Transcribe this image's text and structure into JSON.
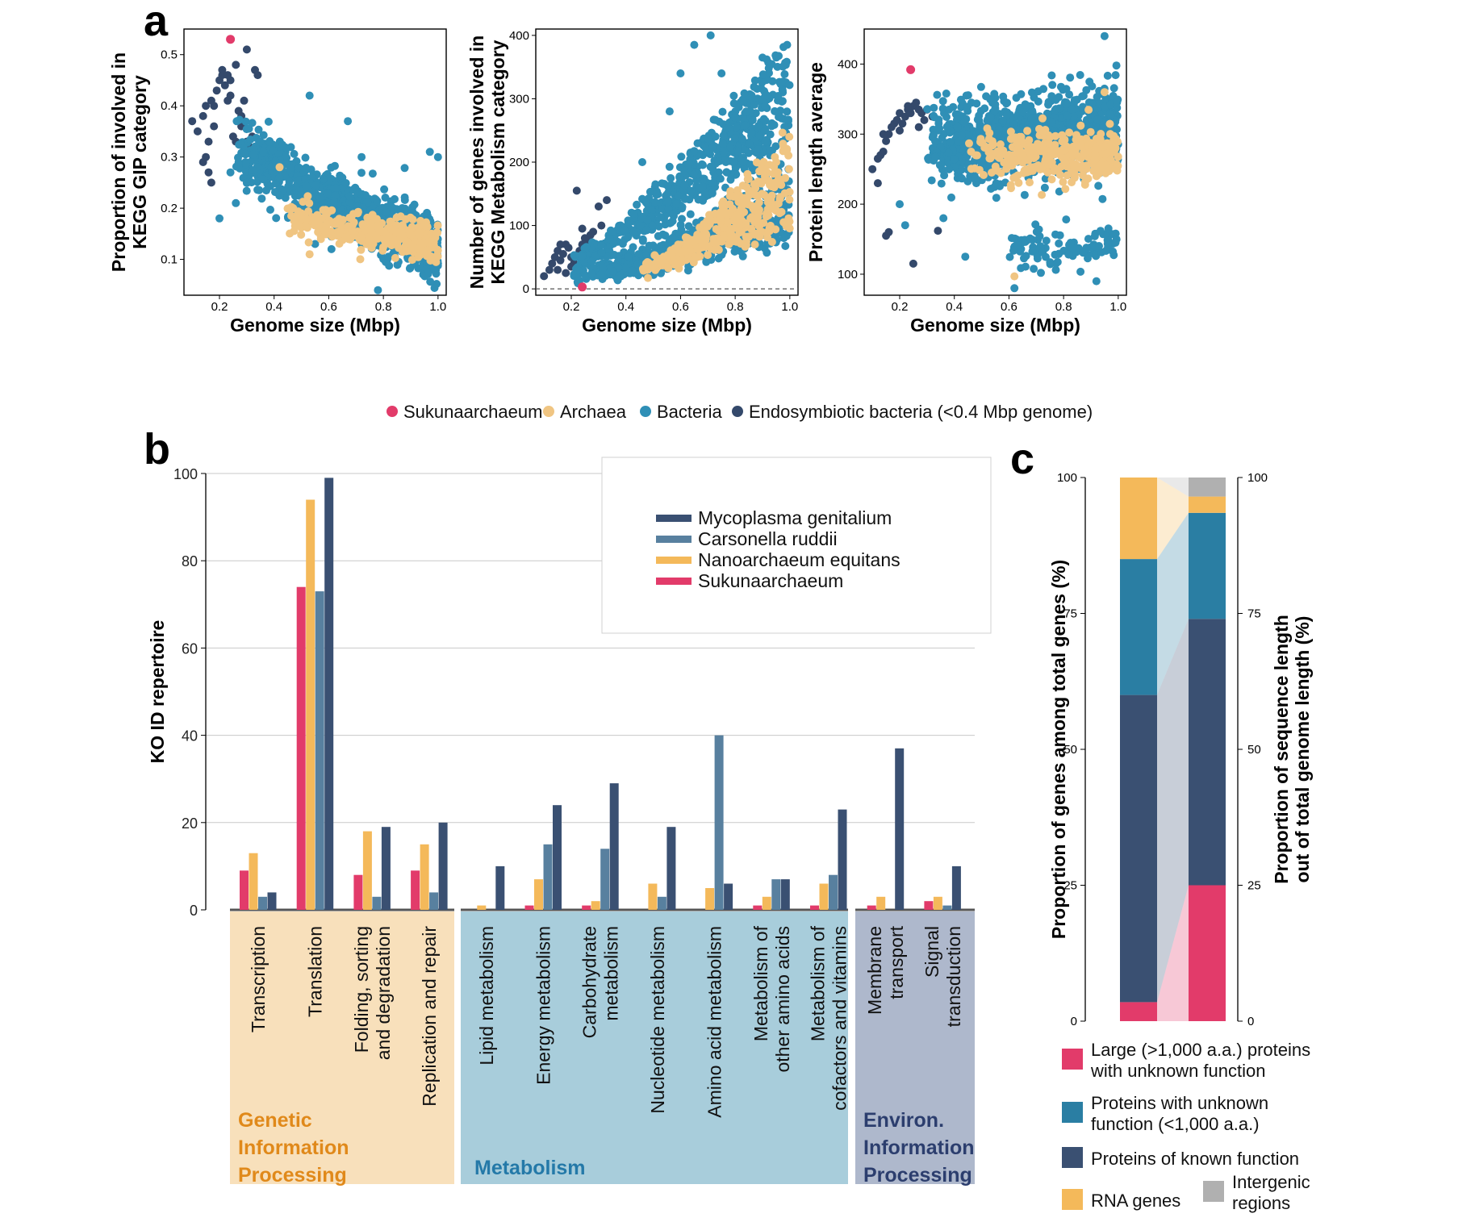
{
  "panel_labels": {
    "a": "a",
    "b": "b",
    "c": "c"
  },
  "colors": {
    "sukuna": "#e23b6a",
    "archaea": "#f0c582",
    "bacteria": "#2f8fb6",
    "endo": "#34496b",
    "myco": "#3a5072",
    "carso": "#58809f",
    "nano": "#f4b95a",
    "large": "#e23b6a",
    "unknown": "#2a7ea3",
    "known": "#3a5072",
    "rna": "#f4b95a",
    "intergenic": "#b0b0b0"
  },
  "chart_data": [
    {
      "type": "scatter",
      "id": "a1",
      "xlabel": "Genome size (Mbp)",
      "ylabel": [
        "Proportion of involved in",
        "KEGG GIP category"
      ],
      "xlim": [
        0.07,
        1.03
      ],
      "ylim": [
        0.03,
        0.55
      ],
      "xticks": [
        0.2,
        0.4,
        0.6,
        0.8,
        1.0
      ],
      "xtick_labels": [
        "0.2",
        "0.4",
        "0.6",
        "0.8",
        "1.0"
      ],
      "yticks": [
        0.1,
        0.2,
        0.3,
        0.4,
        0.5
      ],
      "ytick_labels": [
        "0.1",
        "0.2",
        "0.3",
        "0.4",
        "0.5"
      ],
      "series": [
        {
          "name": "Endosymbiotic bacteria (<0.4 Mbp genome)",
          "color_key": "endo",
          "points": [
            [
              0.1,
              0.37
            ],
            [
              0.12,
              0.35
            ],
            [
              0.14,
              0.38
            ],
            [
              0.15,
              0.4
            ],
            [
              0.16,
              0.33
            ],
            [
              0.17,
              0.41
            ],
            [
              0.18,
              0.36
            ],
            [
              0.15,
              0.3
            ],
            [
              0.16,
              0.27
            ],
            [
              0.17,
              0.25
            ],
            [
              0.19,
              0.43
            ],
            [
              0.2,
              0.45
            ],
            [
              0.21,
              0.46
            ],
            [
              0.22,
              0.44
            ],
            [
              0.23,
              0.46
            ],
            [
              0.24,
              0.42
            ],
            [
              0.21,
              0.47
            ],
            [
              0.24,
              0.45
            ],
            [
              0.25,
              0.34
            ],
            [
              0.26,
              0.33
            ],
            [
              0.28,
              0.36
            ],
            [
              0.3,
              0.33
            ],
            [
              0.31,
              0.32
            ],
            [
              0.33,
              0.47
            ],
            [
              0.34,
              0.46
            ],
            [
              0.3,
              0.51
            ],
            [
              0.27,
              0.39
            ],
            [
              0.28,
              0.38
            ],
            [
              0.29,
              0.41
            ],
            [
              0.18,
              0.4
            ],
            [
              0.14,
              0.29
            ],
            [
              0.23,
              0.41
            ],
            [
              0.26,
              0.48
            ],
            [
              0.32,
              0.34
            ]
          ]
        },
        {
          "name": "Bacteria",
          "color_key": "bacteria",
          "generate": {
            "count": 1200,
            "seed": 11,
            "xrange": [
              0.26,
              1.0
            ],
            "model": "gip"
          },
          "points": [
            [
              0.2,
              0.18
            ],
            [
              0.24,
              0.27
            ],
            [
              0.26,
              0.21
            ],
            [
              0.27,
              0.29
            ],
            [
              0.36,
              0.31
            ],
            [
              0.42,
              0.26
            ],
            [
              0.53,
              0.42
            ],
            [
              0.67,
              0.37
            ],
            [
              0.72,
              0.3
            ],
            [
              0.97,
              0.31
            ],
            [
              1.0,
              0.3
            ],
            [
              0.55,
              0.13
            ],
            [
              0.61,
              0.12
            ],
            [
              0.78,
              0.04
            ]
          ]
        },
        {
          "name": "Archaea",
          "color_key": "archaea",
          "generate": {
            "count": 340,
            "seed": 23,
            "xrange": [
              0.44,
              1.0
            ],
            "model": "gip_arch"
          },
          "points": [
            [
              0.42,
              0.28
            ],
            [
              0.53,
              0.11
            ],
            [
              0.47,
              0.2
            ],
            [
              0.5,
              0.19
            ]
          ]
        },
        {
          "name": "Sukunaarchaeum",
          "color_key": "sukuna",
          "points": [
            [
              0.24,
              0.53
            ]
          ]
        }
      ]
    },
    {
      "type": "scatter",
      "id": "a2",
      "xlabel": "Genome size (Mbp)",
      "ylabel": [
        "Number of genes involved in",
        "KEGG Metabolism category"
      ],
      "xlim": [
        0.07,
        1.03
      ],
      "ylim": [
        -10,
        410
      ],
      "dashed_y": 0,
      "xticks": [
        0.2,
        0.4,
        0.6,
        0.8,
        1.0
      ],
      "xtick_labels": [
        "0.2",
        "0.4",
        "0.6",
        "0.8",
        "1.0"
      ],
      "yticks": [
        0,
        100,
        200,
        300,
        400
      ],
      "ytick_labels": [
        "0",
        "100",
        "200",
        "300",
        "400"
      ],
      "series": [
        {
          "name": "Endosymbiotic bacteria (<0.4 Mbp genome)",
          "color_key": "endo",
          "points": [
            [
              0.1,
              20
            ],
            [
              0.12,
              30
            ],
            [
              0.13,
              40
            ],
            [
              0.14,
              50
            ],
            [
              0.15,
              60
            ],
            [
              0.16,
              45
            ],
            [
              0.17,
              55
            ],
            [
              0.18,
              70
            ],
            [
              0.19,
              65
            ],
            [
              0.2,
              50
            ],
            [
              0.21,
              40
            ],
            [
              0.22,
              30
            ],
            [
              0.23,
              60
            ],
            [
              0.24,
              70
            ],
            [
              0.25,
              80
            ],
            [
              0.26,
              75
            ],
            [
              0.27,
              85
            ],
            [
              0.28,
              90
            ],
            [
              0.22,
              155
            ],
            [
              0.3,
              130
            ],
            [
              0.33,
              140
            ],
            [
              0.15,
              30
            ],
            [
              0.18,
              25
            ],
            [
              0.2,
              35
            ],
            [
              0.26,
              40
            ],
            [
              0.29,
              55
            ],
            [
              0.31,
              100
            ],
            [
              0.24,
              95
            ],
            [
              0.16,
              70
            ]
          ]
        },
        {
          "name": "Bacteria",
          "color_key": "bacteria",
          "generate": {
            "count": 1100,
            "seed": 37,
            "xrange": [
              0.2,
              1.0
            ],
            "model": "met"
          },
          "points": [
            [
              0.65,
              385
            ],
            [
              0.71,
              400
            ],
            [
              0.99,
              385
            ],
            [
              0.75,
              340
            ],
            [
              0.9,
              365
            ],
            [
              0.8,
              270
            ],
            [
              0.56,
              280
            ],
            [
              0.46,
              200
            ],
            [
              0.6,
              340
            ]
          ]
        },
        {
          "name": "Archaea",
          "color_key": "archaea",
          "generate": {
            "count": 330,
            "seed": 53,
            "xrange": [
              0.45,
              1.0
            ],
            "model": "met_arch"
          },
          "points": []
        },
        {
          "name": "Sukunaarchaeum",
          "color_key": "sukuna",
          "points": [
            [
              0.24,
              3
            ]
          ]
        }
      ]
    },
    {
      "type": "scatter",
      "id": "a3",
      "xlabel": "Genome size (Mbp)",
      "ylabel": [
        "Protein length average"
      ],
      "xlim": [
        0.07,
        1.03
      ],
      "ylim": [
        70,
        450
      ],
      "xticks": [
        0.2,
        0.4,
        0.6,
        0.8,
        1.0
      ],
      "xtick_labels": [
        "0.2",
        "0.4",
        "0.6",
        "0.8",
        "1.0"
      ],
      "yticks": [
        100,
        200,
        300,
        400
      ],
      "ytick_labels": [
        "100",
        "200",
        "300",
        "400"
      ],
      "series": [
        {
          "name": "Endosymbiotic bacteria (<0.4 Mbp genome)",
          "color_key": "endo",
          "points": [
            [
              0.1,
              250
            ],
            [
              0.12,
              265
            ],
            [
              0.13,
              270
            ],
            [
              0.14,
              275
            ],
            [
              0.15,
              290
            ],
            [
              0.16,
              300
            ],
            [
              0.17,
              310
            ],
            [
              0.18,
              315
            ],
            [
              0.19,
              320
            ],
            [
              0.2,
              330
            ],
            [
              0.21,
              315
            ],
            [
              0.22,
              325
            ],
            [
              0.23,
              335
            ],
            [
              0.24,
              330
            ],
            [
              0.25,
              340
            ],
            [
              0.26,
              345
            ],
            [
              0.27,
              335
            ],
            [
              0.28,
              330
            ],
            [
              0.29,
              320
            ],
            [
              0.3,
              335
            ],
            [
              0.32,
              325
            ],
            [
              0.15,
              155
            ],
            [
              0.16,
              160
            ],
            [
              0.25,
              115
            ],
            [
              0.34,
              162
            ],
            [
              0.12,
              230
            ],
            [
              0.14,
              300
            ],
            [
              0.2,
              305
            ],
            [
              0.23,
              340
            ],
            [
              0.27,
              310
            ]
          ]
        },
        {
          "name": "Bacteria",
          "color_key": "bacteria",
          "generate": {
            "count": 1150,
            "seed": 71,
            "xrange": [
              0.3,
              1.0
            ],
            "model": "prot"
          },
          "points": [
            [
              0.2,
              200
            ],
            [
              0.22,
              170
            ],
            [
              0.36,
              180
            ],
            [
              0.44,
              125
            ],
            [
              0.62,
              80
            ],
            [
              0.92,
              90
            ],
            [
              0.95,
              440
            ]
          ]
        },
        {
          "name": "Archaea",
          "color_key": "archaea",
          "generate": {
            "count": 330,
            "seed": 89,
            "xrange": [
              0.45,
              1.0
            ],
            "model": "prot_arch"
          },
          "points": [
            [
              0.62,
              97
            ],
            [
              0.95,
              360
            ]
          ]
        },
        {
          "name": "Sukunaarchaeum",
          "color_key": "sukuna",
          "points": [
            [
              0.24,
              392
            ]
          ]
        }
      ]
    },
    {
      "type": "bar",
      "id": "b",
      "ylabel": "KO ID repertoire",
      "ylim": [
        0,
        100
      ],
      "yticks": [
        0,
        20,
        40,
        60,
        80,
        100
      ],
      "ytick_labels": [
        "0",
        "20",
        "40",
        "60",
        "80",
        "100"
      ],
      "categories": [
        "Transcription",
        "Translation",
        "Folding, sorting|and degradation",
        "Replication and repair",
        "Lipid metabolism",
        "Energy metabolism",
        "Carbohydrate|metabolism",
        "Nucleotide metabolism",
        "Amino acid metabolism",
        "Metabolism of|other amino acids",
        "Metabolism of|cofactors and vitamins",
        "Membrane|transport",
        "Signal|transduction"
      ],
      "series": [
        {
          "name": "Sukunaarchaeum",
          "color_key": "sukuna",
          "values": [
            9,
            74,
            8,
            9,
            0,
            1,
            1,
            0,
            0,
            1,
            1,
            1,
            2
          ]
        },
        {
          "name": "Nanoarchaeum equitans",
          "color_key": "nano",
          "values": [
            13,
            94,
            18,
            15,
            1,
            7,
            2,
            6,
            5,
            3,
            6,
            3,
            3
          ]
        },
        {
          "name": "Carsonella ruddii",
          "color_key": "carso",
          "values": [
            3,
            73,
            3,
            4,
            0,
            15,
            14,
            3,
            40,
            7,
            8,
            0,
            1
          ]
        },
        {
          "name": "Mycoplasma genitalium",
          "color_key": "myco",
          "values": [
            4,
            99,
            19,
            20,
            10,
            24,
            29,
            19,
            6,
            7,
            23,
            37,
            10
          ]
        }
      ],
      "legend_order": [
        "Mycoplasma genitalium",
        "Carsonella ruddii",
        "Nanoarchaeum equitans",
        "Sukunaarchaeum"
      ],
      "legend_position": "top-right",
      "groups": [
        {
          "lines": [
            "Genetic",
            "Information",
            "Processing"
          ],
          "start": 0,
          "end": 3,
          "bg": "#f8e0bb",
          "fg": "#e0891a"
        },
        {
          "lines": [
            "Metabolism"
          ],
          "start": 4,
          "end": 10,
          "bg": "#a8cddb",
          "fg": "#2479a8"
        },
        {
          "lines": [
            "Environ.",
            "Information",
            "Processing"
          ],
          "start": 11,
          "end": 12,
          "bg": "#aeb8cc",
          "fg": "#2c3e6e"
        }
      ]
    },
    {
      "type": "stacked-bar",
      "id": "c",
      "ylabel_left": "Proportion of genes among total genes (%)",
      "ylabel_right": [
        "Proportion of sequence length",
        "out of total genome length (%)"
      ],
      "ylim": [
        0,
        100
      ],
      "yticks": [
        0,
        25,
        50,
        75,
        100
      ],
      "ytick_labels": [
        "0",
        "25",
        "50",
        "75",
        "100"
      ],
      "bars": [
        {
          "name": "genes",
          "segments": [
            {
              "key": "large",
              "value": 3.5
            },
            {
              "key": "known",
              "value": 56.5
            },
            {
              "key": "unknown",
              "value": 25
            },
            {
              "key": "rna",
              "value": 15
            },
            {
              "key": "intergenic",
              "value": 0
            }
          ]
        },
        {
          "name": "sequence length",
          "segments": [
            {
              "key": "large",
              "value": 25
            },
            {
              "key": "known",
              "value": 49
            },
            {
              "key": "unknown",
              "value": 19.5
            },
            {
              "key": "rna",
              "value": 3
            },
            {
              "key": "intergenic",
              "value": 3.5
            }
          ]
        }
      ],
      "legend": [
        {
          "key": "large",
          "lines": [
            "Large (>1,000 a.a.) proteins",
            "with unknown function"
          ]
        },
        {
          "key": "unknown",
          "lines": [
            "Proteins with unknown",
            "function (<1,000 a.a.)"
          ]
        },
        {
          "key": "known",
          "lines": [
            "Proteins of known function"
          ]
        },
        {
          "key": "rna",
          "lines": [
            "RNA genes"
          ]
        },
        {
          "key": "intergenic",
          "lines": [
            "Intergenic",
            "regions"
          ]
        }
      ]
    }
  ],
  "legend_a": [
    {
      "label": "Sukunaarchaeum",
      "color_key": "sukuna"
    },
    {
      "label": "Archaea",
      "color_key": "archaea"
    },
    {
      "label": "Bacteria",
      "color_key": "bacteria"
    },
    {
      "label": "Endosymbiotic bacteria (<0.4 Mbp genome)",
      "color_key": "endo"
    }
  ]
}
